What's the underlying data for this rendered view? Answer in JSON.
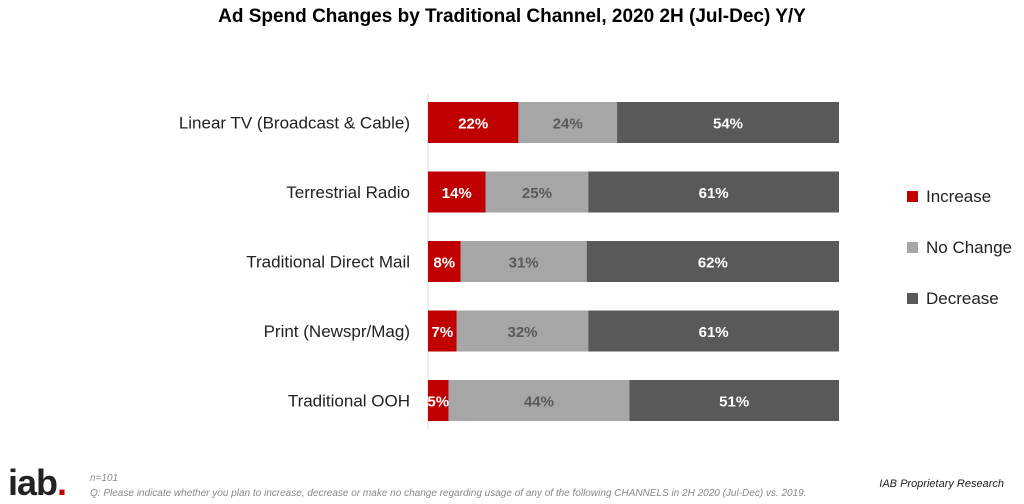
{
  "title": "Ad Spend Changes by Traditional Channel, 2020 2H (Jul-Dec) Y/Y",
  "footer": {
    "logo_text": "iab",
    "logo_dot": ".",
    "n_text": "n=101",
    "question": "Q: Please indicate whether you plan to increase, decrease or make no change regarding usage of any of the following CHANNELS in 2H 2020 (Jul-Dec) vs. 2019.",
    "source": "IAB Proprietary Research"
  },
  "colors": {
    "increase": "#c00000",
    "no_change": "#a6a6a6",
    "decrease": "#595959"
  },
  "chart_data": {
    "type": "bar",
    "orientation": "horizontal",
    "stacked": true,
    "title": "Ad Spend Changes by Traditional Channel, 2020 2H (Jul-Dec) Y/Y",
    "categories": [
      "Linear TV (Broadcast & Cable)",
      "Terrestrial Radio",
      "Traditional Direct Mail",
      "Print (Newspr/Mag)",
      "Traditional OOH"
    ],
    "series": [
      {
        "name": "Increase",
        "values": [
          22,
          14,
          8,
          7,
          5
        ],
        "labels": [
          "22%",
          "14%",
          "8%",
          "7%",
          "5%"
        ]
      },
      {
        "name": "No Change",
        "values": [
          24,
          25,
          31,
          32,
          44
        ],
        "labels": [
          "24%",
          "25%",
          "31%",
          "32%",
          "44%"
        ]
      },
      {
        "name": "Decrease",
        "values": [
          54,
          61,
          62,
          61,
          51
        ],
        "labels": [
          "54%",
          "61%",
          "62%",
          "61%",
          "51%"
        ]
      }
    ],
    "legend_position": "right",
    "grid": false
  }
}
